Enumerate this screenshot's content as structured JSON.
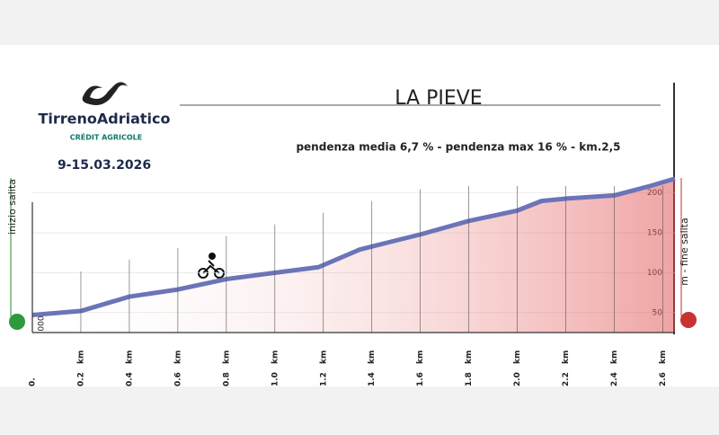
{
  "chart_data": {
    "type": "area",
    "title": "LA PIEVE",
    "subtitle": "pendenza media 6,7 % - pendenza max 16 % - km.2,5",
    "brand": "TirrenoAdriatico",
    "sponsor": "CRÉDIT AGRICOLE",
    "dates": "9-15.03.2026",
    "start_label": "inizio salita",
    "end_label": "m - fine salita",
    "x_unit": "km",
    "y_base_label": "000",
    "x": [
      0,
      0.2,
      0.4,
      0.6,
      0.8,
      1.0,
      1.18,
      1.35,
      1.48,
      1.6,
      1.8,
      2.0,
      2.1,
      2.2,
      2.4,
      2.55,
      2.65
    ],
    "values": [
      47,
      52,
      70,
      79,
      92,
      100,
      107,
      129,
      139,
      148,
      165,
      178,
      190,
      193,
      197,
      209,
      218
    ],
    "color": "#6b74b8",
    "fill_color": "#e04848",
    "xlim": [
      0,
      2.65
    ],
    "ylim": [
      25,
      220
    ],
    "xticks": [
      {
        "value": 0,
        "label": "0."
      },
      0.2,
      0.4,
      0.6,
      0.8,
      {
        "value": 1.0,
        "label": "1.0"
      },
      1.2,
      1.4,
      1.6,
      1.8,
      {
        "value": 2.0,
        "label": "2.0"
      },
      2.2,
      2.4,
      2.6
    ],
    "yticks": [
      50,
      100,
      150,
      200
    ],
    "grid": true
  }
}
